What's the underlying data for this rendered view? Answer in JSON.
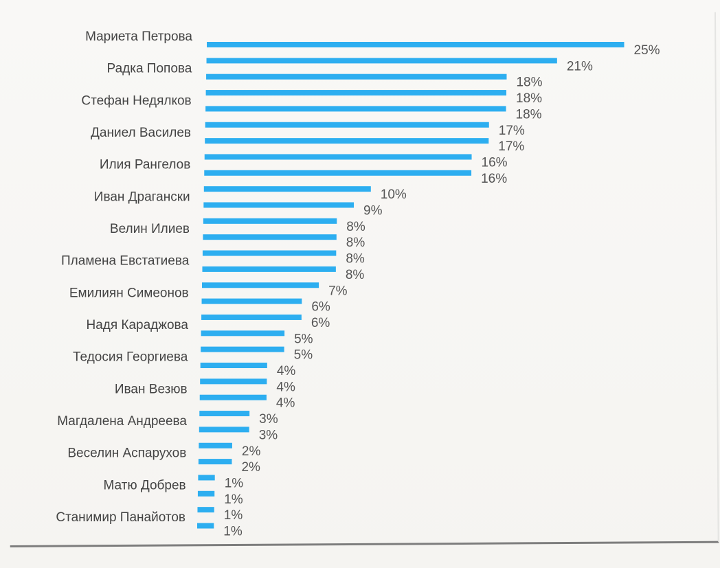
{
  "theme": {
    "bar_color": "#2daef0",
    "text_color": "#444444",
    "pct_color": "#555555"
  },
  "chart_data": {
    "type": "bar",
    "orientation": "horizontal",
    "title": "",
    "xlabel": "",
    "ylabel": "",
    "xlim": [
      0,
      25
    ],
    "grid": false,
    "legend": "none",
    "labeled_names": [
      "Мариета Петрова",
      "Радка Попова",
      "Стефан Недялков",
      "Даниел Василев",
      "Илия Рангелов",
      "Иван Драгански",
      "Велин Илиев",
      "Пламена Евстатиева",
      "Емилиян Симеонов",
      "Надя Караджова",
      "Тедосия Георгиева",
      "Иван Везюв",
      "Магдалена Андреева",
      "Веселин Аспарухов",
      "Матю Добрев",
      "Станимир Панайотов"
    ],
    "values": [
      25,
      21,
      18,
      18,
      18,
      17,
      17,
      16,
      16,
      10,
      9,
      8,
      8,
      8,
      8,
      7,
      6,
      6,
      5,
      5,
      4,
      4,
      4,
      3,
      3,
      2,
      2,
      1,
      1,
      1,
      1
    ],
    "value_labels": [
      "25%",
      "21%",
      "18%",
      "18%",
      "18%",
      "17%",
      "17%",
      "16%",
      "16%",
      "10%",
      "9%",
      "8%",
      "8%",
      "8%",
      "8%",
      "7%",
      "6%",
      "6%",
      "5%",
      "5%",
      "4%",
      "4%",
      "4%",
      "3%",
      "3%",
      "2%",
      "2%",
      "1%",
      "1%",
      "1%",
      "1%"
    ]
  }
}
